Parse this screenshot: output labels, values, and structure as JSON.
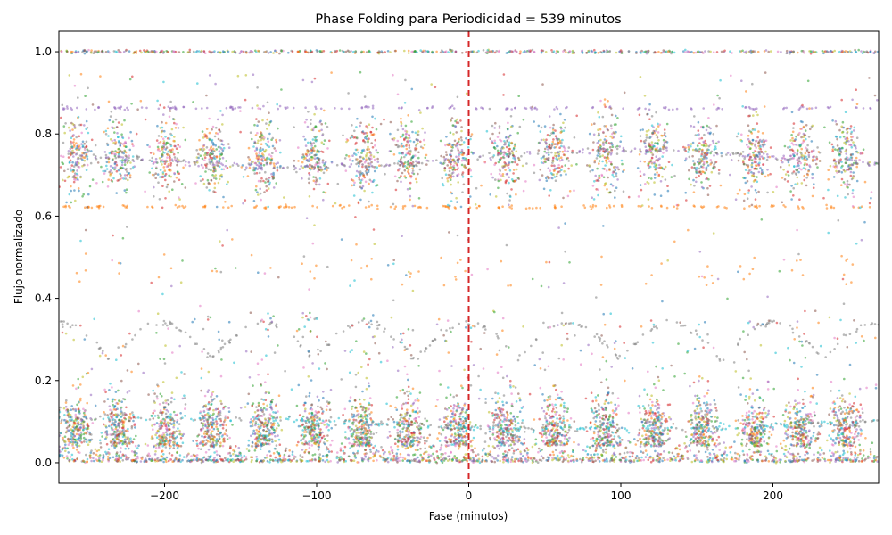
{
  "chart_data": {
    "type": "scatter",
    "title": "Phase Folding para Periodicidad = 539 minutos",
    "xlabel": "Fase (minutos)",
    "ylabel": "Flujo normalizado",
    "xlim": [
      -269.5,
      269.5
    ],
    "ylim": [
      -0.05,
      1.05
    ],
    "xticks": [
      {
        "value": -200,
        "label": "−200"
      },
      {
        "value": -100,
        "label": "−100"
      },
      {
        "value": 0,
        "label": "0"
      },
      {
        "value": 100,
        "label": "100"
      },
      {
        "value": 200,
        "label": "200"
      }
    ],
    "yticks": [
      {
        "value": 0.0,
        "label": "0.0"
      },
      {
        "value": 0.2,
        "label": "0.2"
      },
      {
        "value": 0.4,
        "label": "0.4"
      },
      {
        "value": 0.6,
        "label": "0.6"
      },
      {
        "value": 0.8,
        "label": "0.8"
      },
      {
        "value": 1.0,
        "label": "1.0"
      }
    ],
    "grid": false,
    "marker_alpha": 0.55,
    "reference_line": {
      "x": 0,
      "color": "#d62728",
      "style": "dashed"
    },
    "palette": [
      "#1f77b4",
      "#ff7f0e",
      "#2ca02c",
      "#d62728",
      "#9467bd",
      "#8c564b",
      "#e377c2",
      "#7f7f7f",
      "#bcbd22",
      "#17becf"
    ],
    "period_min": 539,
    "cluster_centers_x": [
      -258,
      -230,
      -198,
      -168,
      -135,
      -102,
      -70,
      -40,
      -8,
      24,
      56,
      90,
      122,
      154,
      188,
      218,
      248
    ],
    "bands": [
      {
        "name": "upper",
        "y_center": 0.75,
        "y_spread": 0.04
      },
      {
        "name": "lower",
        "y_center": 0.05,
        "y_spread": 0.04
      }
    ],
    "flat_levels": [
      {
        "y": 1.0,
        "color": "mixed"
      },
      {
        "y": 0.863,
        "color": "#9467bd",
        "dashed": true
      },
      {
        "y": 0.623,
        "color": "#ff7f0e",
        "dashed": true
      },
      {
        "y": 0.005,
        "color": "mixed"
      }
    ],
    "wave_curve": {
      "color": "#7f7f7f",
      "y_range": [
        0.25,
        0.34
      ]
    }
  }
}
